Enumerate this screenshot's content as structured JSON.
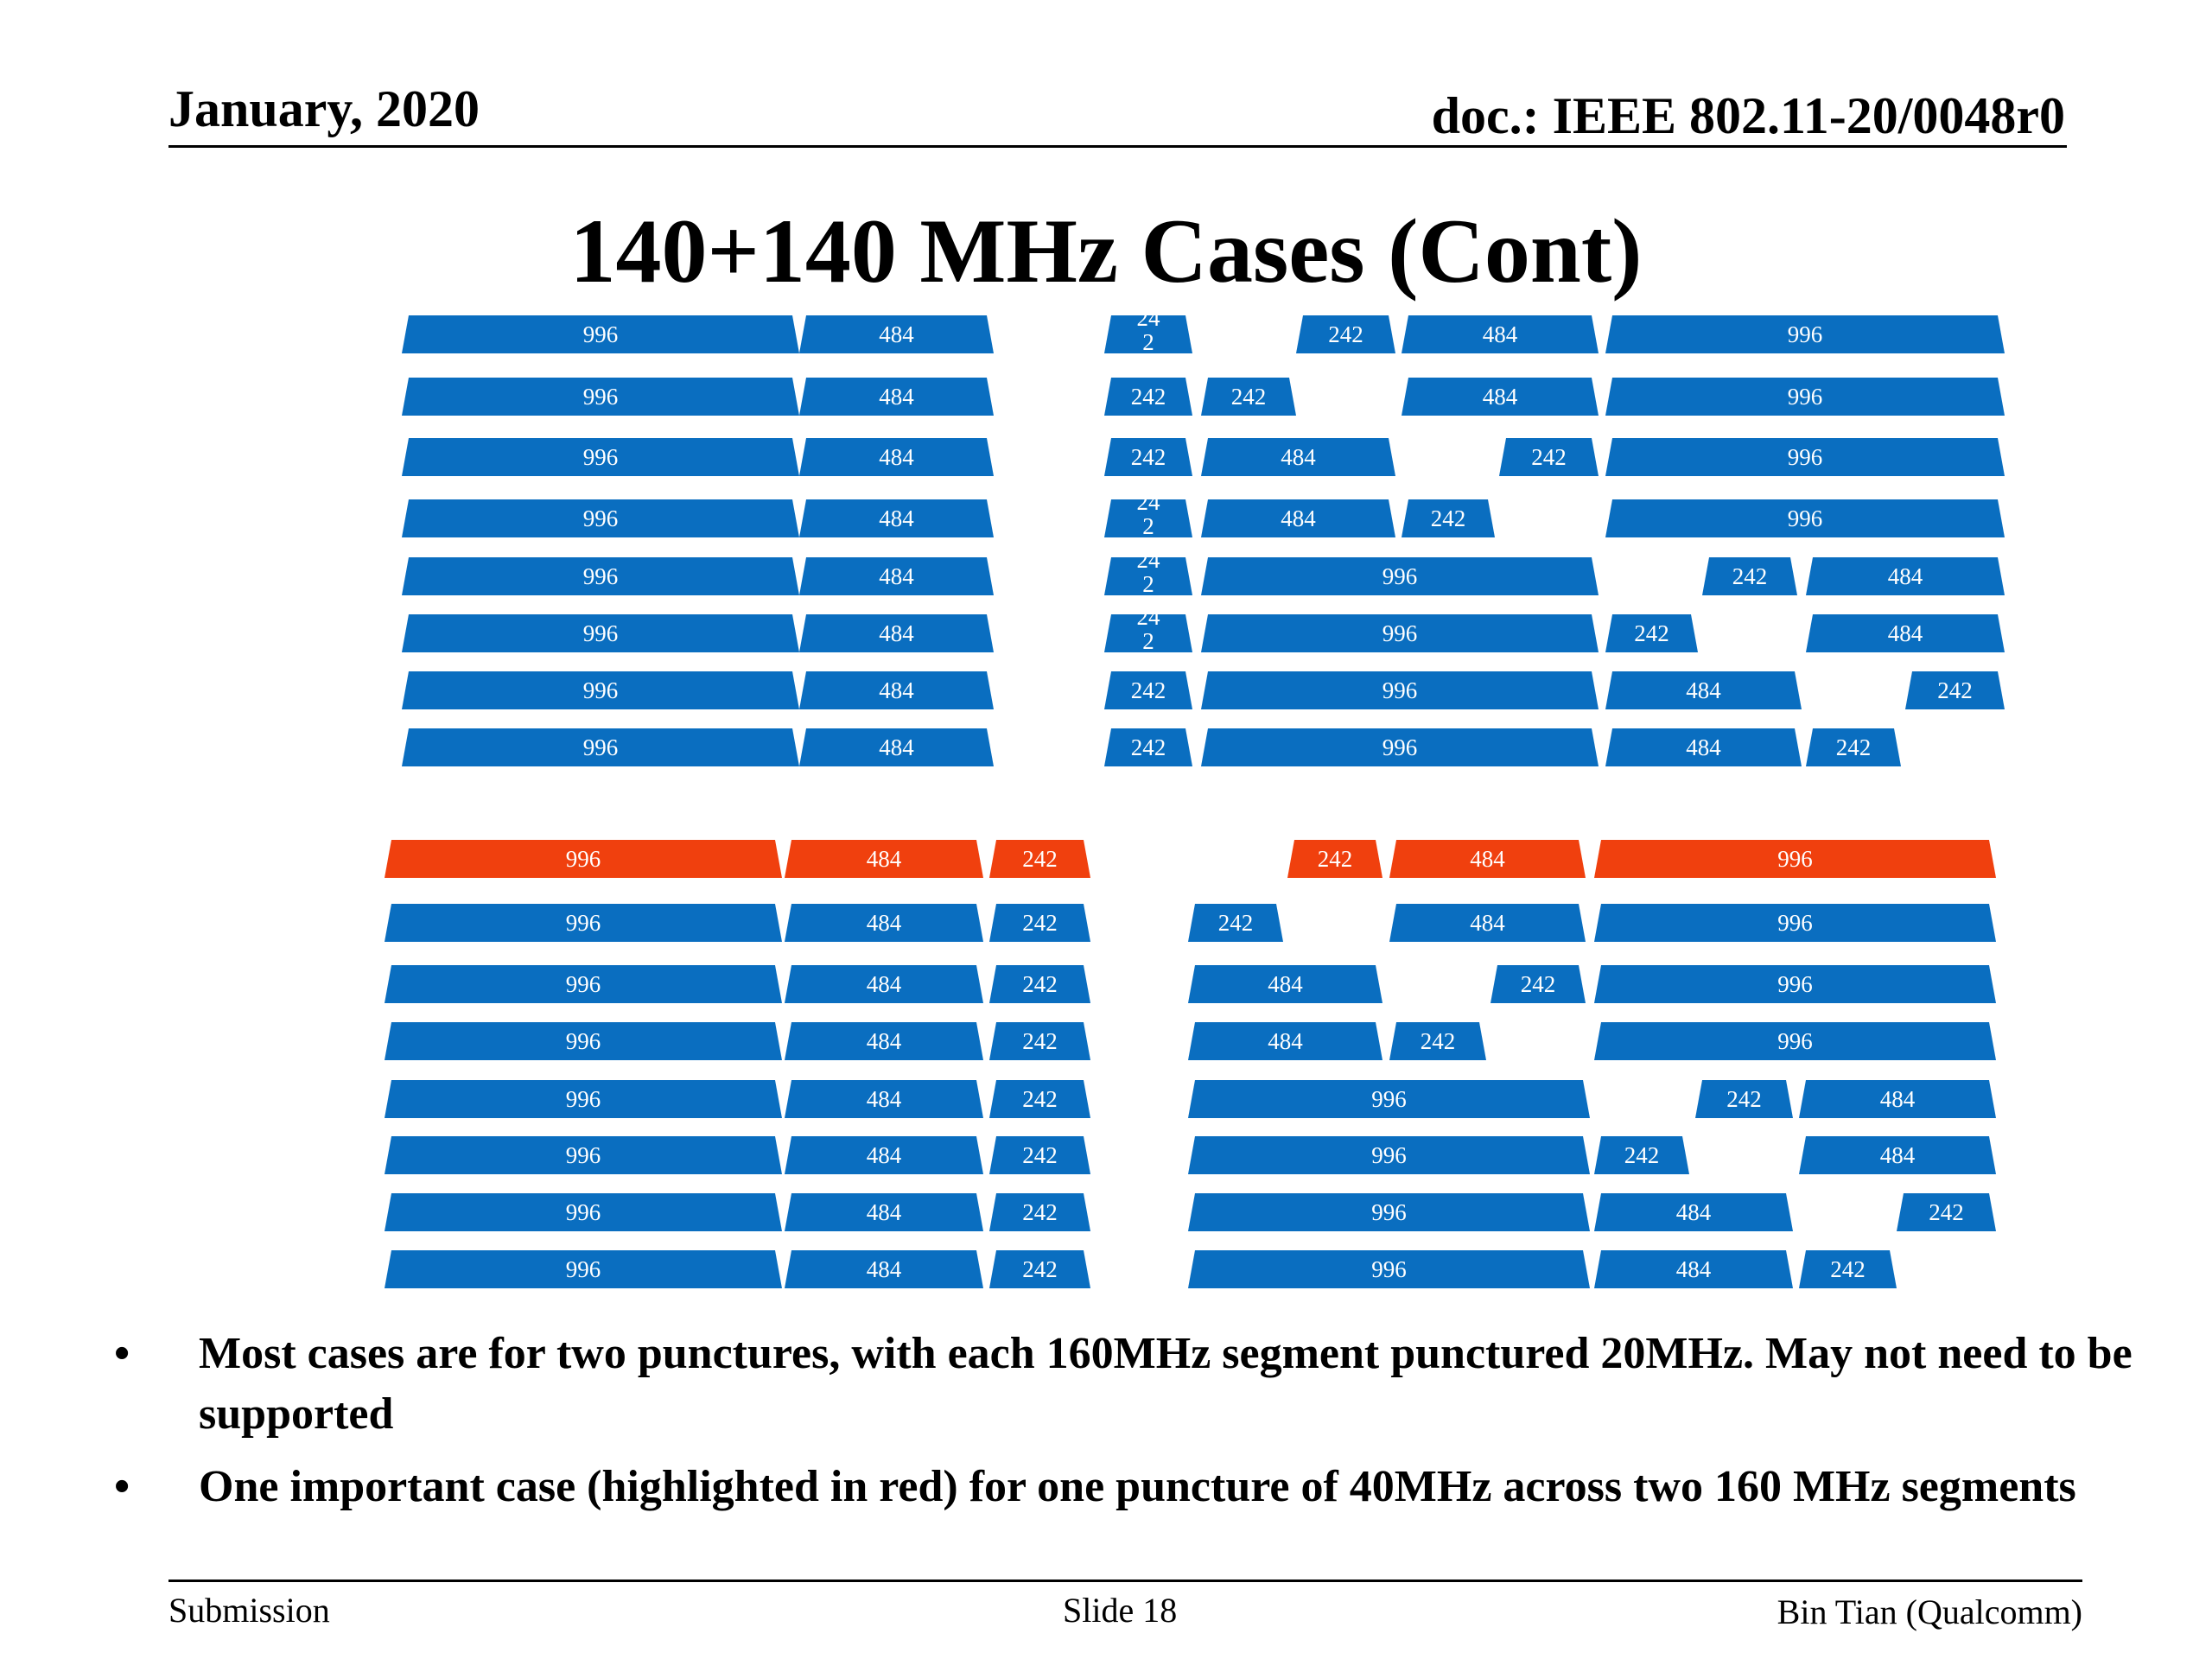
{
  "header": {
    "date": "January, 2020",
    "doc": "doc.: IEEE 802.11-20/0048r0"
  },
  "title": "140+140 MHz Cases (Cont)",
  "colors": {
    "normal": "#0a6ec0",
    "highlight": "#f0400e"
  },
  "diagram": {
    "top_left": [
      [
        "996",
        "484"
      ],
      [
        "996",
        "484"
      ],
      [
        "996",
        "484"
      ],
      [
        "996",
        "484"
      ],
      [
        "996",
        "484"
      ],
      [
        "996",
        "484"
      ],
      [
        "996",
        "484"
      ],
      [
        "996",
        "484"
      ]
    ],
    "top_right": [
      [
        "24\n2",
        "242",
        "484",
        "996"
      ],
      [
        "242",
        "242",
        "484",
        "996"
      ],
      [
        "242",
        "484",
        "242",
        "996"
      ],
      [
        "24\n2",
        "484",
        "242",
        "996"
      ],
      [
        "24\n2",
        "996",
        "242",
        "484"
      ],
      [
        "24\n2",
        "996",
        "242",
        "484"
      ],
      [
        "242",
        "996",
        "484",
        "242"
      ],
      [
        "242",
        "996",
        "484",
        "242"
      ]
    ],
    "bottom_left": [
      [
        "996",
        "484",
        "242"
      ],
      [
        "996",
        "484",
        "242"
      ],
      [
        "996",
        "484",
        "242"
      ],
      [
        "996",
        "484",
        "242"
      ],
      [
        "996",
        "484",
        "242"
      ],
      [
        "996",
        "484",
        "242"
      ],
      [
        "996",
        "484",
        "242"
      ],
      [
        "996",
        "484",
        "242"
      ]
    ],
    "bottom_right": [
      [
        "242",
        "484",
        "996"
      ],
      [
        "242",
        "484",
        "996"
      ],
      [
        "484",
        "242",
        "996"
      ],
      [
        "484",
        "242",
        "996"
      ],
      [
        "996",
        "242",
        "484"
      ],
      [
        "996",
        "242",
        "484"
      ],
      [
        "996",
        "484",
        "242"
      ],
      [
        "996",
        "484",
        "242"
      ]
    ],
    "highlighted_row_bottom": 0
  },
  "bullets": [
    "Most cases are for two punctures, with each 160MHz segment punctured  20MHz. May not need to be supported",
    "One important case (highlighted in red) for one puncture of 40MHz across two 160 MHz segments"
  ],
  "bullet_symbol": "•",
  "footer": {
    "left": "Submission",
    "center": "Slide 18",
    "right": "Bin Tian (Qualcomm)"
  }
}
